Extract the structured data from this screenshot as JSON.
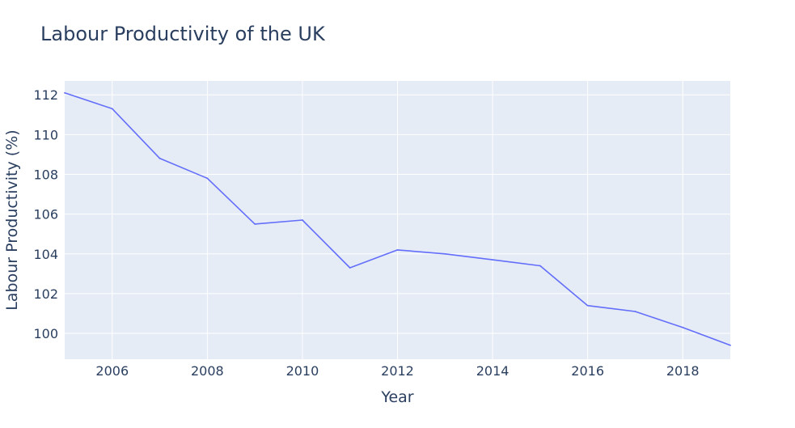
{
  "chart_data": {
    "type": "line",
    "title": "Labour Productivity of the UK",
    "xlabel": "Year",
    "ylabel": "Labour Productivity (%)",
    "x": [
      2005,
      2006,
      2007,
      2008,
      2009,
      2010,
      2011,
      2012,
      2013,
      2014,
      2015,
      2016,
      2017,
      2018,
      2019
    ],
    "series": [
      {
        "values": [
          112.1,
          111.3,
          108.8,
          107.8,
          105.5,
          105.7,
          103.3,
          104.2,
          104.0,
          103.7,
          103.4,
          101.4,
          101.1,
          100.3,
          99.4
        ]
      }
    ],
    "xlim": [
      2005,
      2019
    ],
    "ylim": [
      98.7,
      112.7
    ],
    "x_ticks": [
      2006,
      2008,
      2010,
      2012,
      2014,
      2016,
      2018
    ],
    "y_ticks": [
      100,
      102,
      104,
      106,
      108,
      110,
      112
    ],
    "grid": true,
    "legend": "none",
    "colors": {
      "line": "#636efa",
      "plot_background": "#e5ecf6",
      "grid": "#ffffff",
      "text": "#2a3f5f"
    }
  }
}
